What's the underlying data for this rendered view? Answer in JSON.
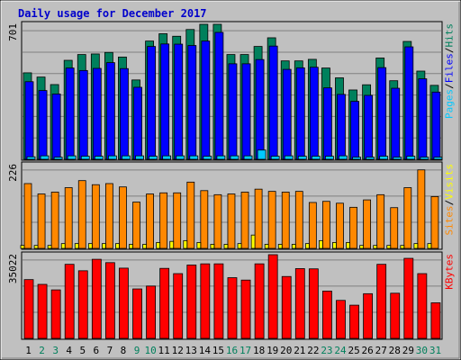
{
  "chart_data": {
    "type": "bar",
    "title": "Daily usage for December 2017",
    "colors": {
      "title": "#0000cc",
      "hits": "#00805c",
      "files": "#0000ff",
      "pages": "#00c8ff",
      "visits": "#ffff00",
      "sites": "#ff8800",
      "kbytes": "#ff0000",
      "weekday_label": "#000000",
      "weekend_label": "#00805c"
    },
    "x": [
      "1",
      "2",
      "3",
      "4",
      "5",
      "6",
      "7",
      "8",
      "9",
      "10",
      "11",
      "12",
      "13",
      "14",
      "15",
      "16",
      "17",
      "18",
      "19",
      "20",
      "21",
      "22",
      "23",
      "24",
      "25",
      "26",
      "27",
      "28",
      "29",
      "30",
      "31"
    ],
    "weekend": [
      "2",
      "3",
      "9",
      "10",
      "16",
      "17",
      "23",
      "24",
      "30",
      "31"
    ],
    "panels": [
      {
        "id": "requests",
        "ymax_label": "701",
        "ymax": 701,
        "legend": [
          "Pages",
          "/",
          "Files",
          "/",
          "Hits"
        ],
        "series": [
          {
            "name": "Hits",
            "values": [
              449,
              427,
              388,
              514,
              544,
              547,
              555,
              531,
              412,
              614,
              652,
              639,
              674,
              701,
              701,
              544,
              544,
              586,
              631,
              511,
              511,
              519,
              474,
              423,
              360,
              387,
              526,
              408,
              612,
              458,
              384
            ]
          },
          {
            "name": "Files",
            "values": [
              403,
              357,
              339,
              474,
              461,
              472,
              502,
              471,
              374,
              586,
              599,
              598,
              591,
              614,
              659,
              496,
              496,
              518,
              588,
              467,
              475,
              478,
              371,
              337,
              301,
              332,
              476,
              369,
              584,
              418,
              349
            ]
          },
          {
            "name": "Pages",
            "values": [
              13,
              18,
              11,
              18,
              16,
              16,
              18,
              18,
              18,
              16,
              18,
              18,
              18,
              16,
              18,
              18,
              18,
              48,
              16,
              18,
              16,
              16,
              16,
              18,
              11,
              11,
              16,
              11,
              16,
              11,
              11
            ]
          }
        ]
      },
      {
        "id": "visitors",
        "ymax_label": "226",
        "ymax": 226,
        "legend": [
          "Sites",
          "/",
          "Visits"
        ],
        "series": [
          {
            "name": "Visits",
            "values": [
              8,
              8,
              8,
              13,
              13,
              13,
              13,
              13,
              11,
              11,
              16,
              19,
              21,
              16,
              11,
              11,
              13,
              36,
              11,
              11,
              11,
              13,
              21,
              16,
              16,
              8,
              8,
              8,
              8,
              13,
              13
            ]
          },
          {
            "name": "Sites",
            "values": [
              175,
              147,
              152,
              164,
              183,
              172,
              175,
              166,
              125,
              147,
              150,
              150,
              179,
              156,
              145,
              147,
              152,
              160,
              154,
              152,
              154,
              124,
              127,
              122,
              111,
              131,
              145,
              110,
              164,
              212,
              140
            ]
          }
        ]
      },
      {
        "id": "kbytes",
        "ymax_label": "35022",
        "ymax": 35022,
        "legend": [
          "KBytes"
        ],
        "series": [
          {
            "name": "KBytes",
            "values": [
              24600,
              22600,
              20300,
              31000,
              28300,
              33100,
              31700,
              29400,
              20700,
              21900,
              29300,
              27100,
              30700,
              31200,
              31200,
              25400,
              24400,
              31200,
              35022,
              25900,
              29200,
              29100,
              19800,
              15900,
              13900,
              18700,
              31000,
              18900,
              33500,
              27100,
              14900
            ]
          }
        ]
      }
    ]
  }
}
